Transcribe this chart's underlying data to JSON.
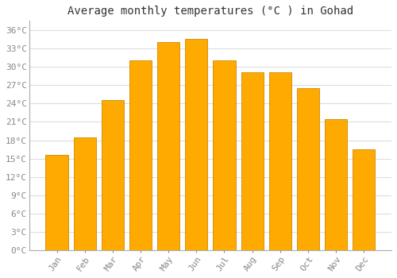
{
  "title": "Average monthly temperatures (°C ) in Gohad",
  "months": [
    "Jan",
    "Feb",
    "Mar",
    "Apr",
    "May",
    "Jun",
    "Jul",
    "Aug",
    "Sep",
    "Oct",
    "Nov",
    "Dec"
  ],
  "temperatures": [
    15.6,
    18.5,
    24.5,
    31.0,
    34.0,
    34.6,
    31.1,
    29.1,
    29.1,
    26.5,
    21.5,
    16.5
  ],
  "bar_color_face": "#FFAA00",
  "bar_color_edge": "#CC8800",
  "background_color": "#FFFFFF",
  "plot_bg_color": "#FFFFFF",
  "grid_color": "#DDDDDD",
  "ylim": [
    0,
    37.5
  ],
  "yticks": [
    0,
    3,
    6,
    9,
    12,
    15,
    18,
    21,
    24,
    27,
    30,
    33,
    36
  ],
  "ytick_labels": [
    "0°C",
    "3°C",
    "6°C",
    "9°C",
    "12°C",
    "15°C",
    "18°C",
    "21°C",
    "24°C",
    "27°C",
    "30°C",
    "33°C",
    "36°C"
  ],
  "title_fontsize": 10,
  "tick_fontsize": 8,
  "label_color": "#888888",
  "spine_color": "#AAAAAA",
  "bar_width": 0.8
}
